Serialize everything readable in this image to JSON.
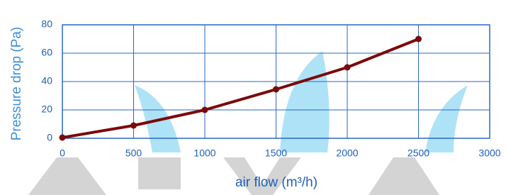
{
  "chart_data": {
    "type": "line",
    "x_label": "air flow  (m³/h)",
    "y_label": "Pressure drop (Pa)",
    "x": [
      0,
      500,
      1000,
      1500,
      2000,
      2500
    ],
    "series": [
      {
        "color": "#7a0a0a",
        "values": [
          0.5,
          9,
          20,
          34.5,
          50,
          70
        ]
      }
    ],
    "xlim": [
      0,
      3000
    ],
    "xticks": [
      0,
      500,
      1000,
      1500,
      2000,
      2500,
      3000
    ],
    "ylim": [
      0,
      80
    ],
    "yticks": [
      0,
      20,
      40,
      60,
      80
    ],
    "grid": true
  }
}
